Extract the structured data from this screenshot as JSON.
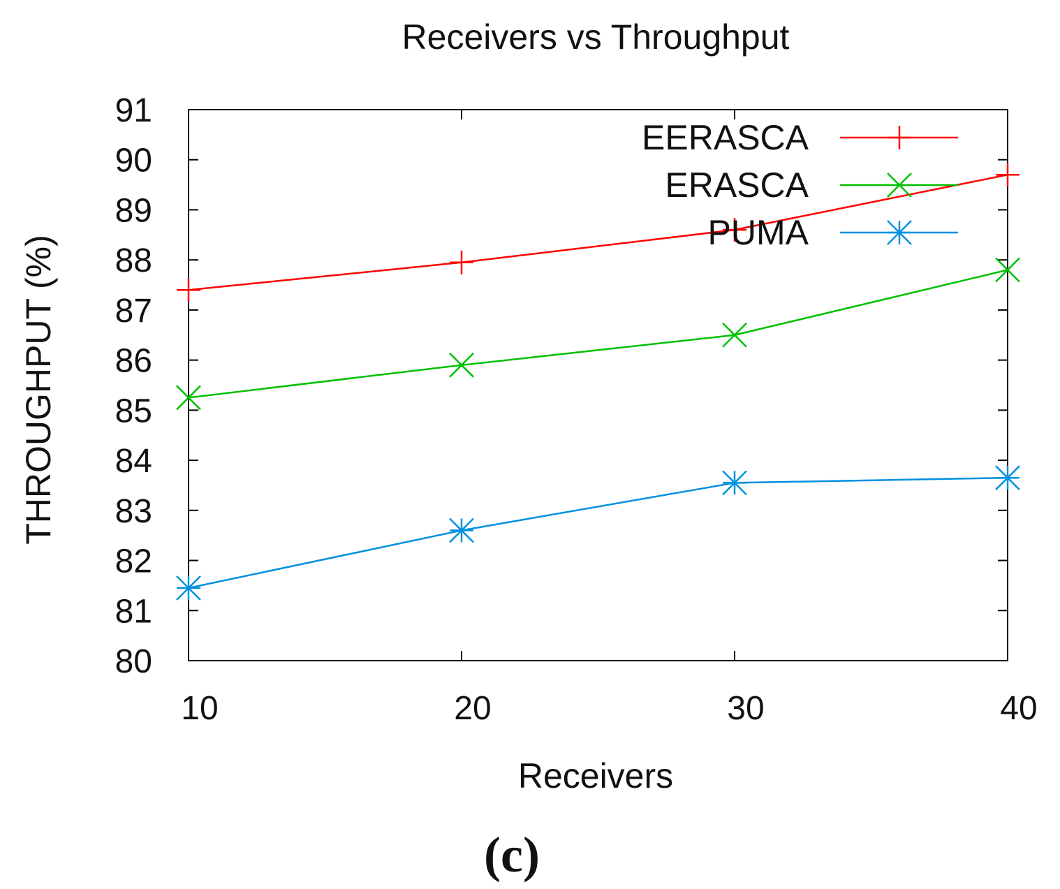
{
  "chart_data": {
    "type": "line",
    "title": "Receivers vs Throughput",
    "xlabel": "Receivers",
    "ylabel": "THROUGHPUT (%)",
    "x": [
      10,
      20,
      30,
      40
    ],
    "xlim": [
      10,
      40
    ],
    "ylim": [
      80,
      91
    ],
    "x_ticks": [
      "10",
      "20",
      "30",
      "40"
    ],
    "y_ticks": [
      "80",
      "81",
      "82",
      "83",
      "84",
      "85",
      "86",
      "87",
      "88",
      "89",
      "90",
      "91"
    ],
    "grid": false,
    "legend_position": "top-right",
    "series": [
      {
        "name": "EERASCA",
        "values": [
          87.4,
          87.95,
          88.6,
          89.7
        ],
        "color": "#ff0000",
        "marker": "plus"
      },
      {
        "name": "ERASCA",
        "values": [
          85.25,
          85.9,
          86.5,
          87.8
        ],
        "color": "#00c000",
        "marker": "cross"
      },
      {
        "name": "PUMA",
        "values": [
          81.45,
          82.6,
          83.55,
          83.65
        ],
        "color": "#0090e0",
        "marker": "star"
      }
    ]
  },
  "caption": "(c)"
}
